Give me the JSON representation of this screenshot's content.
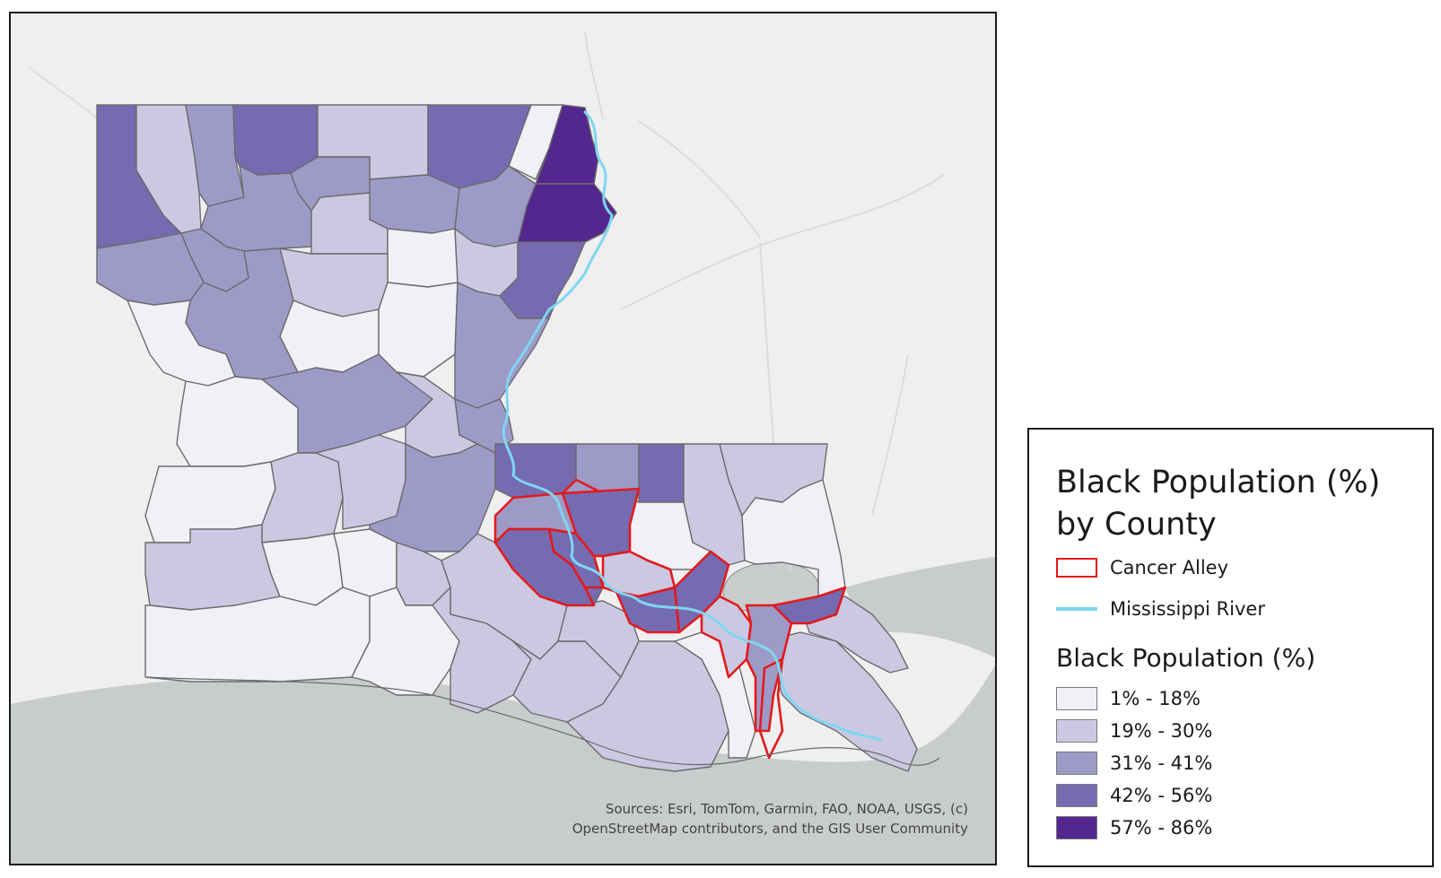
{
  "map": {
    "title": "Black Population (%) by County",
    "attribution_line1": "Sources:  Esri, TomTom, Garmin, FAO, NOAA, USGS, (c)",
    "attribution_line2": "OpenStreetMap contributors, and the GIS User Community"
  },
  "colors": {
    "land": "#efefef",
    "water": "#c9cccc",
    "county_border": "#6b6b6b",
    "cancer_alley": "#e31a1c",
    "river": "#7fd6f2"
  },
  "legend": {
    "title": "Black Population (%) by County",
    "cancer_alley_label": "Cancer Alley",
    "river_label": "Mississippi River",
    "classes_title": "Black Population (%)",
    "classes": [
      {
        "label": "1% - 18%",
        "color": "#f2f0f7"
      },
      {
        "label": "19% - 30%",
        "color": "#cbc9e2"
      },
      {
        "label": "31% - 41%",
        "color": "#9e9ac8"
      },
      {
        "label": "42% - 56%",
        "color": "#756bb1"
      },
      {
        "label": "57% - 86%",
        "color": "#54278f"
      }
    ]
  }
}
